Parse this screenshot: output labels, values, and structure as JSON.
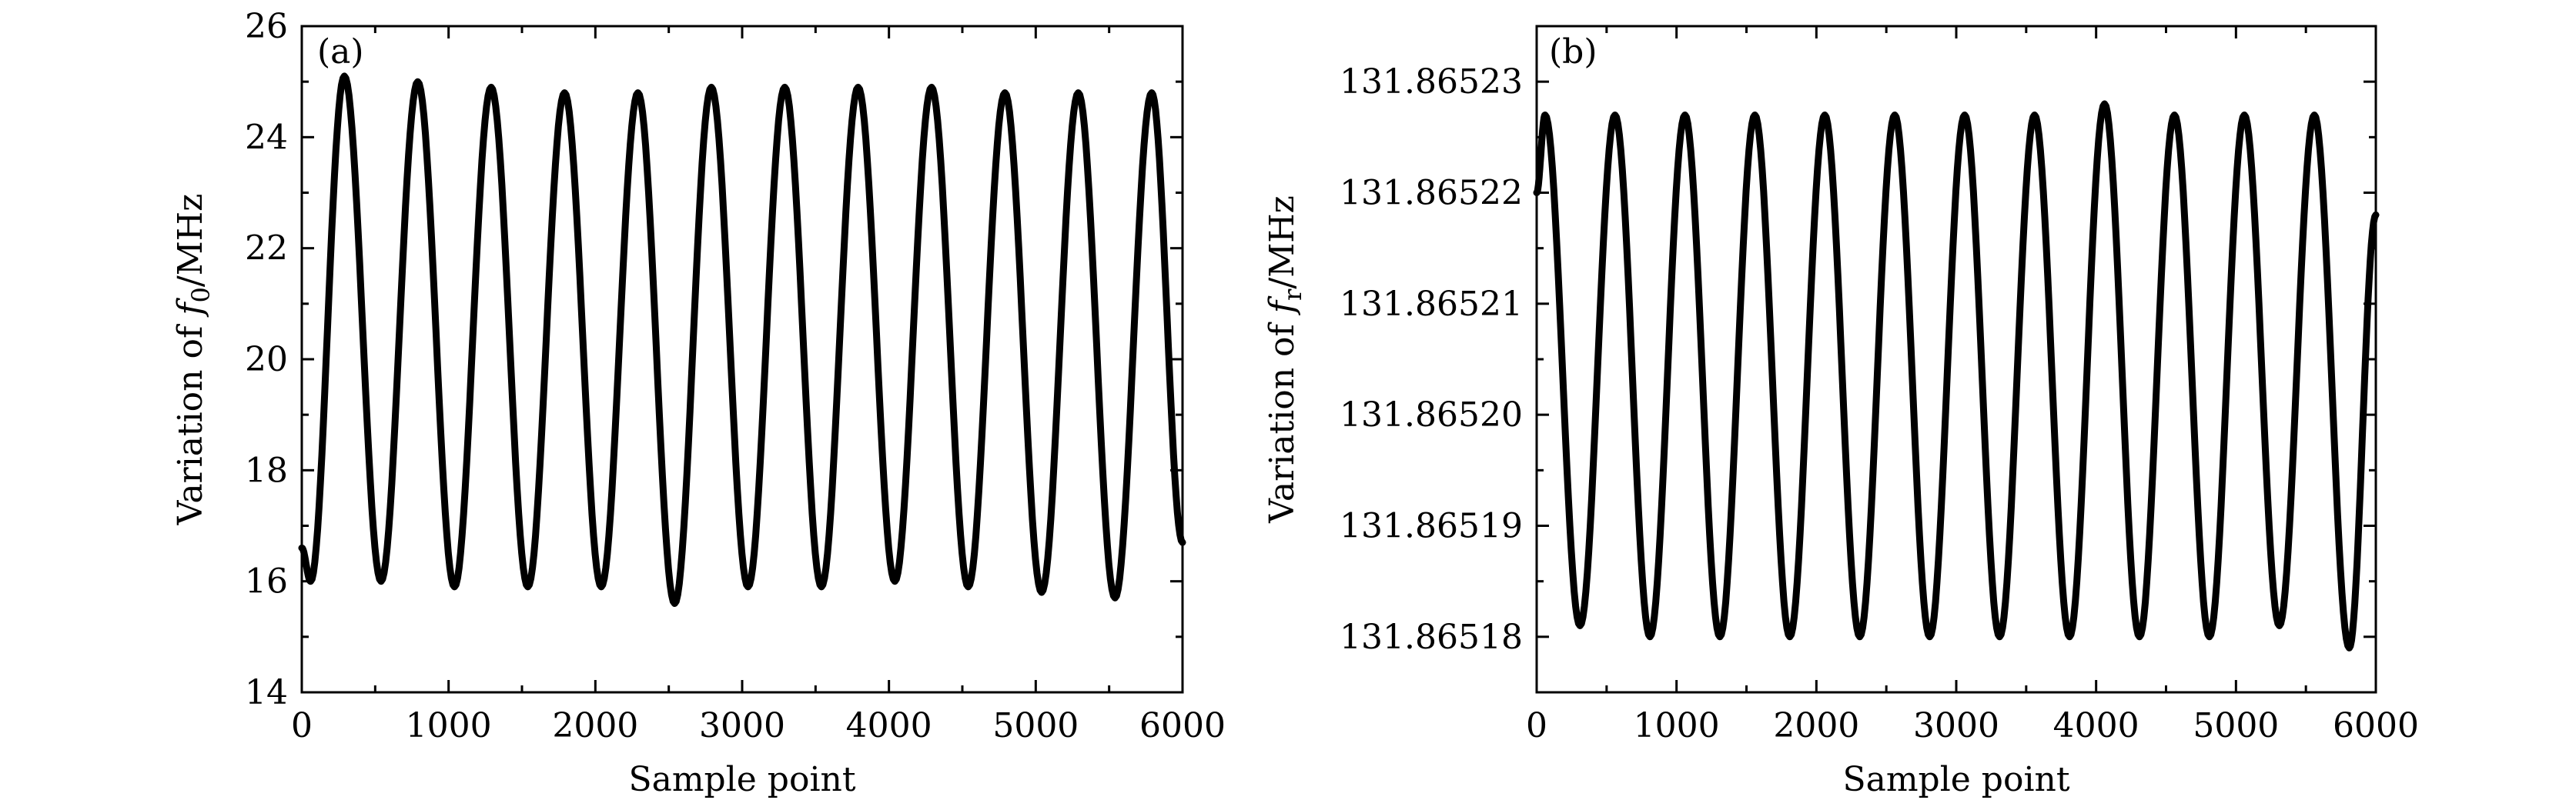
{
  "chart_data": [
    {
      "type": "line",
      "panel_label": "(a)",
      "xlabel": "Sample point",
      "ylabel_prefix": "Variation of ",
      "ylabel_symbol": "f",
      "ylabel_subscript": "0",
      "ylabel_suffix": "/MHz",
      "xlim": [
        0,
        6000
      ],
      "ylim": [
        14,
        26
      ],
      "xticks": [
        0,
        1000,
        2000,
        3000,
        4000,
        5000,
        6000
      ],
      "xtick_labels": [
        "0",
        "1000",
        "2000",
        "3000",
        "4000",
        "5000",
        "6000"
      ],
      "yticks": [
        14,
        16,
        18,
        20,
        22,
        24,
        26
      ],
      "ytick_labels": [
        "14",
        "16",
        "18",
        "20",
        "22",
        "24",
        "26"
      ],
      "grid": false,
      "series": [
        {
          "color": "#000000",
          "x": [
            0,
            60,
            290,
            540,
            790,
            1040,
            1290,
            1540,
            1790,
            2040,
            2290,
            2540,
            2790,
            3040,
            3290,
            3540,
            3790,
            4040,
            4290,
            4540,
            4790,
            5040,
            5290,
            5540,
            5790,
            6000
          ],
          "y": [
            16.6,
            16.0,
            25.1,
            16.0,
            25.0,
            15.9,
            24.9,
            15.9,
            24.8,
            15.9,
            24.8,
            15.6,
            24.9,
            15.9,
            24.9,
            15.9,
            24.9,
            16.0,
            24.9,
            15.9,
            24.8,
            15.8,
            24.8,
            15.7,
            24.8,
            16.7
          ]
        }
      ]
    },
    {
      "type": "line",
      "panel_label": "(b)",
      "xlabel": "Sample point",
      "ylabel_prefix": "Variation of ",
      "ylabel_symbol": "f",
      "ylabel_subscript": "r",
      "ylabel_suffix": "/MHz",
      "xlim": [
        0,
        6000
      ],
      "ylim": [
        131.865175,
        131.865235
      ],
      "xticks": [
        0,
        1000,
        2000,
        3000,
        4000,
        5000,
        6000
      ],
      "xtick_labels": [
        "0",
        "1000",
        "2000",
        "3000",
        "4000",
        "5000",
        "6000"
      ],
      "yticks": [
        131.86518,
        131.86519,
        131.8652,
        131.86521,
        131.86522,
        131.86523
      ],
      "ytick_labels": [
        "131.86518",
        "131.86519",
        "131.86520",
        "131.86521",
        "131.86522",
        "131.86523"
      ],
      "grid": false,
      "series": [
        {
          "color": "#000000",
          "x": [
            0,
            60,
            310,
            560,
            810,
            1060,
            1310,
            1560,
            1810,
            2060,
            2310,
            2560,
            2810,
            3060,
            3310,
            3560,
            3810,
            4060,
            4310,
            4560,
            4810,
            5060,
            5310,
            5560,
            5810,
            6000
          ],
          "y": [
            131.86522,
            131.865227,
            131.865181,
            131.865227,
            131.86518,
            131.865227,
            131.86518,
            131.865227,
            131.86518,
            131.865227,
            131.86518,
            131.865227,
            131.86518,
            131.865227,
            131.86518,
            131.865227,
            131.86518,
            131.865228,
            131.86518,
            131.865227,
            131.86518,
            131.865227,
            131.865181,
            131.865227,
            131.865179,
            131.865218
          ]
        }
      ]
    }
  ]
}
